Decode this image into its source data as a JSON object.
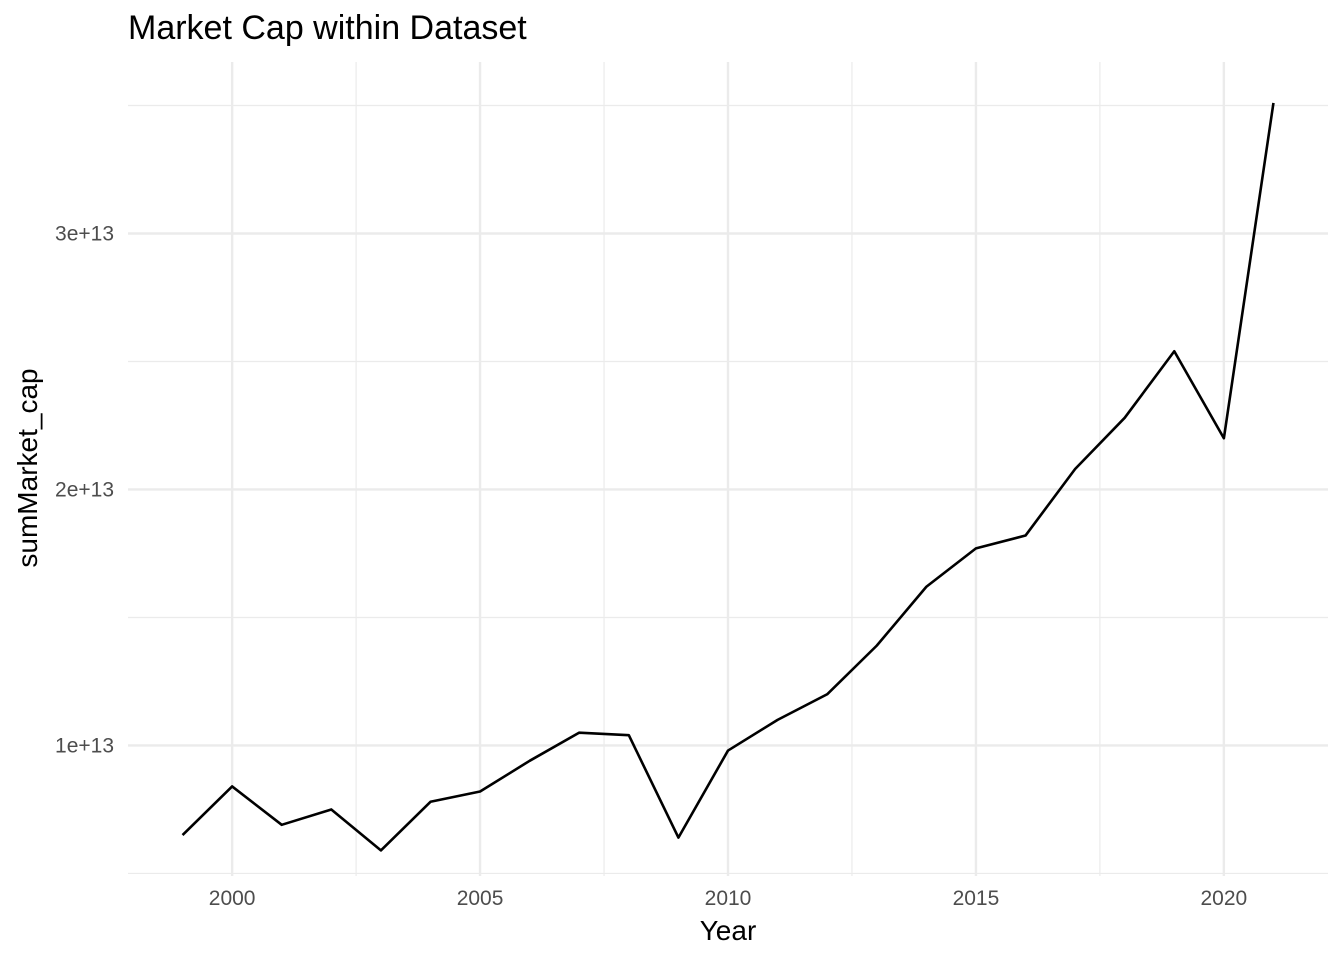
{
  "chart_data": {
    "type": "line",
    "title": "Market Cap within Dataset",
    "xlabel": "Year",
    "ylabel": "sumMarket_cap",
    "x": [
      1999,
      2000,
      2001,
      2002,
      2003,
      2004,
      2005,
      2006,
      2007,
      2008,
      2009,
      2010,
      2011,
      2012,
      2013,
      2014,
      2015,
      2016,
      2017,
      2018,
      2019,
      2020,
      2021
    ],
    "series": [
      {
        "values": [
          6500000000000.0,
          8400000000000.0,
          6900000000000.0,
          7500000000000.0,
          5900000000000.0,
          7800000000000.0,
          8200000000000.0,
          9400000000000.0,
          10500000000000.0,
          10400000000000.0,
          6400000000000.0,
          9800000000000.0,
          11000000000000.0,
          12000000000000.0,
          13900000000000.0,
          16200000000000.0,
          17700000000000.0,
          18200000000000.0,
          20800000000000.0,
          22800000000000.0,
          25400000000000.0,
          22000000000000.0,
          35100000000000.0
        ],
        "color": "#000000"
      }
    ],
    "xlim": [
      1997.9,
      2022.1
    ],
    "ylim": [
      4900000000000.0,
      36700000000000.0
    ],
    "x_ticks": [
      2000,
      2005,
      2010,
      2015,
      2020
    ],
    "x_tick_labels": [
      "2000",
      "2005",
      "2010",
      "2015",
      "2020"
    ],
    "y_ticks": [
      10000000000000.0,
      20000000000000.0,
      30000000000000.0
    ],
    "y_tick_labels": [
      "1e+13",
      "2e+13",
      "3e+13"
    ],
    "grid": true,
    "legend": "none"
  }
}
